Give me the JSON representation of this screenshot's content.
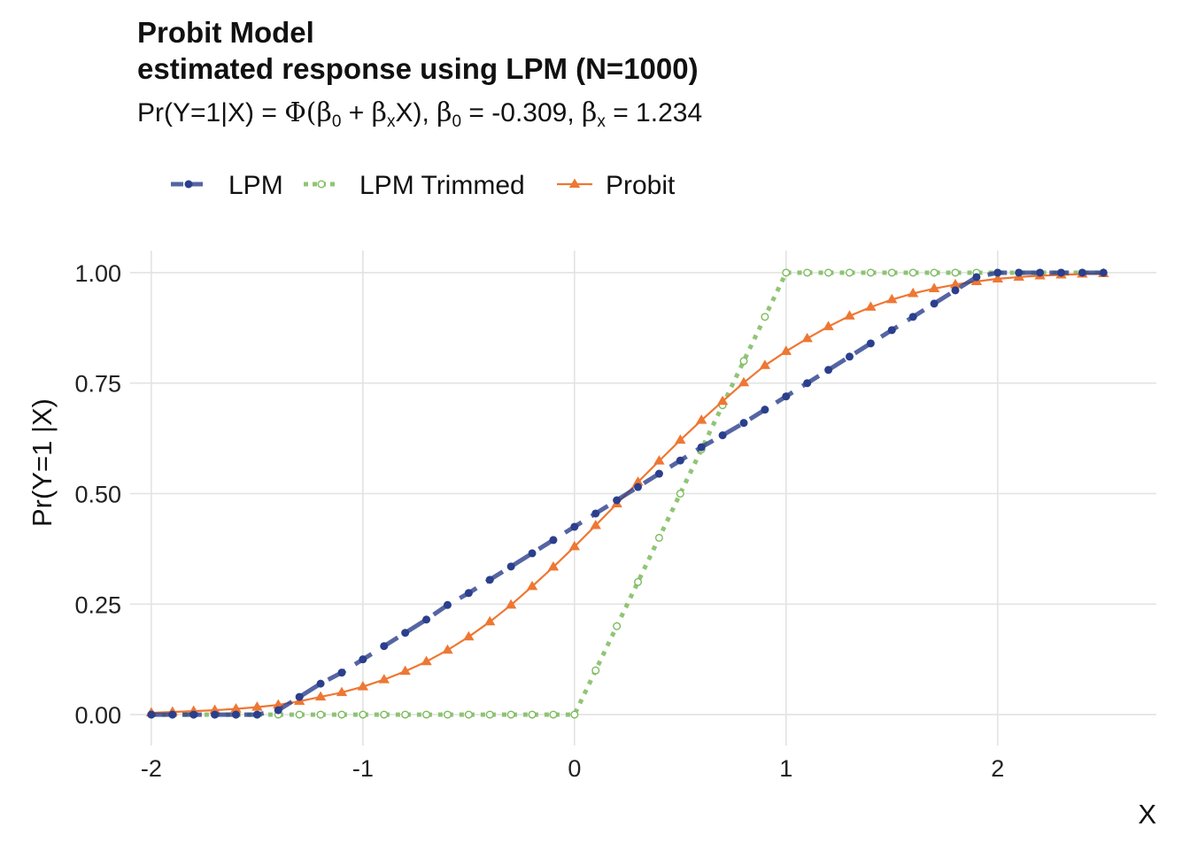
{
  "title_line1": "Probit Model",
  "title_line2": "estimated response using LPM (N=1000)",
  "subtitle": {
    "prefix": "Pr(Y=1|X) = ",
    "phi": "Φ",
    "open": "(",
    "beta": "β",
    "sub0": "0",
    "plus": " + ",
    "subx": "x",
    "close": "X), ",
    "eq0": " = -0.309, ",
    "eqx": " = 1.234"
  },
  "chart_data": {
    "type": "line",
    "xlabel": "X",
    "ylabel": "Pr(Y=1 |X)",
    "xlim": [
      -2.1,
      2.75
    ],
    "ylim": [
      -0.07,
      1.05
    ],
    "x_ticks": [
      -2,
      -1,
      0,
      1,
      2
    ],
    "y_ticks": [
      0,
      0.25,
      0.5,
      0.75,
      1
    ],
    "x_tick_labels": [
      "-2",
      "-1",
      "0",
      "1",
      "2"
    ],
    "y_tick_labels": [
      "0.00",
      "0.25",
      "0.50",
      "0.75",
      "1.00"
    ],
    "grid": true,
    "legend_position": "top-left",
    "x": [
      -2.0,
      -1.9,
      -1.8,
      -1.7,
      -1.6,
      -1.5,
      -1.4,
      -1.3,
      -1.2,
      -1.1,
      -1.0,
      -0.9,
      -0.8,
      -0.7,
      -0.6,
      -0.5,
      -0.4,
      -0.3,
      -0.2,
      -0.1,
      0.0,
      0.1,
      0.2,
      0.3,
      0.4,
      0.5,
      0.6,
      0.7,
      0.8,
      0.9,
      1.0,
      1.1,
      1.2,
      1.3,
      1.4,
      1.5,
      1.6,
      1.7,
      1.8,
      1.9,
      2.0,
      2.1,
      2.2,
      2.3,
      2.4,
      2.5
    ],
    "series": [
      {
        "name": "LPM",
        "color": "#2b3f8c",
        "line": "dashed",
        "marker": "circle",
        "values": [
          0,
          0,
          0,
          0,
          0,
          0,
          0.01,
          0.04,
          0.07,
          0.095,
          0.125,
          0.155,
          0.185,
          0.215,
          0.248,
          0.275,
          0.305,
          0.335,
          0.365,
          0.395,
          0.425,
          0.455,
          0.485,
          0.515,
          0.545,
          0.575,
          0.605,
          0.632,
          0.66,
          0.69,
          0.72,
          0.75,
          0.78,
          0.81,
          0.84,
          0.87,
          0.9,
          0.93,
          0.96,
          0.99,
          1,
          1,
          1,
          1,
          1,
          1
        ]
      },
      {
        "name": "LPM Trimmed",
        "color": "#7dbb5e",
        "line": "dotted",
        "marker": "open-circle",
        "values": [
          0,
          0,
          0,
          0,
          0,
          0,
          0,
          0,
          0,
          0,
          0,
          0,
          0,
          0,
          0,
          0,
          0,
          0,
          0,
          0,
          0,
          0.1,
          0.2,
          0.3,
          0.4,
          0.5,
          0.6,
          0.7,
          0.8,
          0.9,
          1,
          1,
          1,
          1,
          1,
          1,
          1,
          1,
          1,
          1,
          1,
          1,
          1,
          1,
          1,
          1
        ]
      },
      {
        "name": "Probit",
        "color": "#ee7733",
        "line": "solid",
        "marker": "triangle",
        "values": [
          0.004,
          0.006,
          0.008,
          0.01,
          0.013,
          0.017,
          0.022,
          0.03,
          0.04,
          0.05,
          0.063,
          0.079,
          0.098,
          0.12,
          0.146,
          0.176,
          0.21,
          0.248,
          0.29,
          0.334,
          0.38,
          0.428,
          0.477,
          0.526,
          0.574,
          0.621,
          0.666,
          0.709,
          0.751,
          0.79,
          0.822,
          0.851,
          0.878,
          0.902,
          0.922,
          0.939,
          0.953,
          0.964,
          0.973,
          0.98,
          0.986,
          0.99,
          0.993,
          0.995,
          0.997,
          0.998
        ]
      }
    ]
  }
}
